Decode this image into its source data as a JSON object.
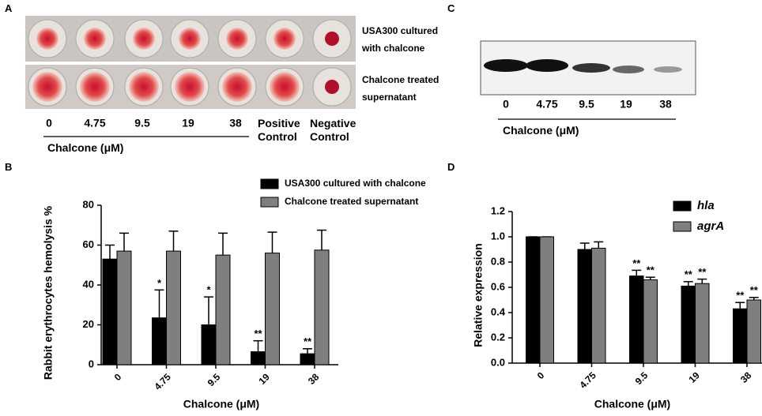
{
  "panel_a": {
    "label": "A",
    "rows": [
      "USA300 cultured with chalcone",
      "Chalcone treated supernatant"
    ],
    "concentrations": [
      "0",
      "4.75",
      "9.5",
      "19",
      "38"
    ],
    "controls": [
      "Positive Control",
      "Negative Control"
    ],
    "axis_label": "Chalcone (μM)"
  },
  "panel_c": {
    "label": "C",
    "concentrations": [
      "0",
      "4.75",
      "9.5",
      "19",
      "38"
    ],
    "axis_label": "Chalcone (μM)"
  },
  "chart_data": [
    {
      "type": "bar",
      "panel": "B",
      "xlabel": "Chalcone (μM)",
      "ylabel": "Rabbit erythrocytes hemolysis %",
      "categories": [
        "0",
        "4.75",
        "9.5",
        "19",
        "38"
      ],
      "series": [
        {
          "name": "USA300 cultured with chalcone",
          "color": "#000000",
          "values": [
            53,
            23.5,
            20,
            6.5,
            5.5
          ],
          "errors": [
            7,
            14,
            14,
            5.5,
            2.5
          ],
          "significance": [
            null,
            "*",
            "*",
            "**",
            "**"
          ]
        },
        {
          "name": "Chalcone treated supernatant",
          "color": "#7f7f7f",
          "values": [
            57,
            57,
            55,
            56,
            57.5
          ],
          "errors": [
            9,
            10,
            11,
            10.5,
            10
          ],
          "significance": [
            null,
            null,
            null,
            null,
            null
          ]
        }
      ],
      "ylim": [
        0,
        80
      ],
      "yticks": [
        0,
        20,
        40,
        60,
        80
      ],
      "legend": "top"
    },
    {
      "type": "bar",
      "panel": "D",
      "xlabel": "Chalcone (μM)",
      "ylabel": "Relative expression",
      "categories": [
        "0",
        "4.75",
        "9.5",
        "19",
        "38"
      ],
      "series": [
        {
          "name": "hla",
          "color": "#000000",
          "values": [
            1,
            0.9,
            0.69,
            0.61,
            0.43
          ],
          "errors": [
            0,
            0.05,
            0.045,
            0.035,
            0.05
          ],
          "significance": [
            null,
            null,
            "**",
            "**",
            "**"
          ]
        },
        {
          "name": "agrA",
          "color": "#7f7f7f",
          "values": [
            1,
            0.91,
            0.66,
            0.63,
            0.5
          ],
          "errors": [
            0,
            0.05,
            0.02,
            0.035,
            0.02
          ],
          "significance": [
            null,
            null,
            "**",
            "**",
            "**"
          ]
        }
      ],
      "ylim": [
        0,
        1.2
      ],
      "yticks": [
        {
          "value": 0,
          "label": "0.0"
        },
        0.2,
        0.4,
        0.6,
        0.8,
        {
          "value": 1,
          "label": "1.0"
        },
        1.2
      ],
      "legend": "upper right"
    }
  ]
}
